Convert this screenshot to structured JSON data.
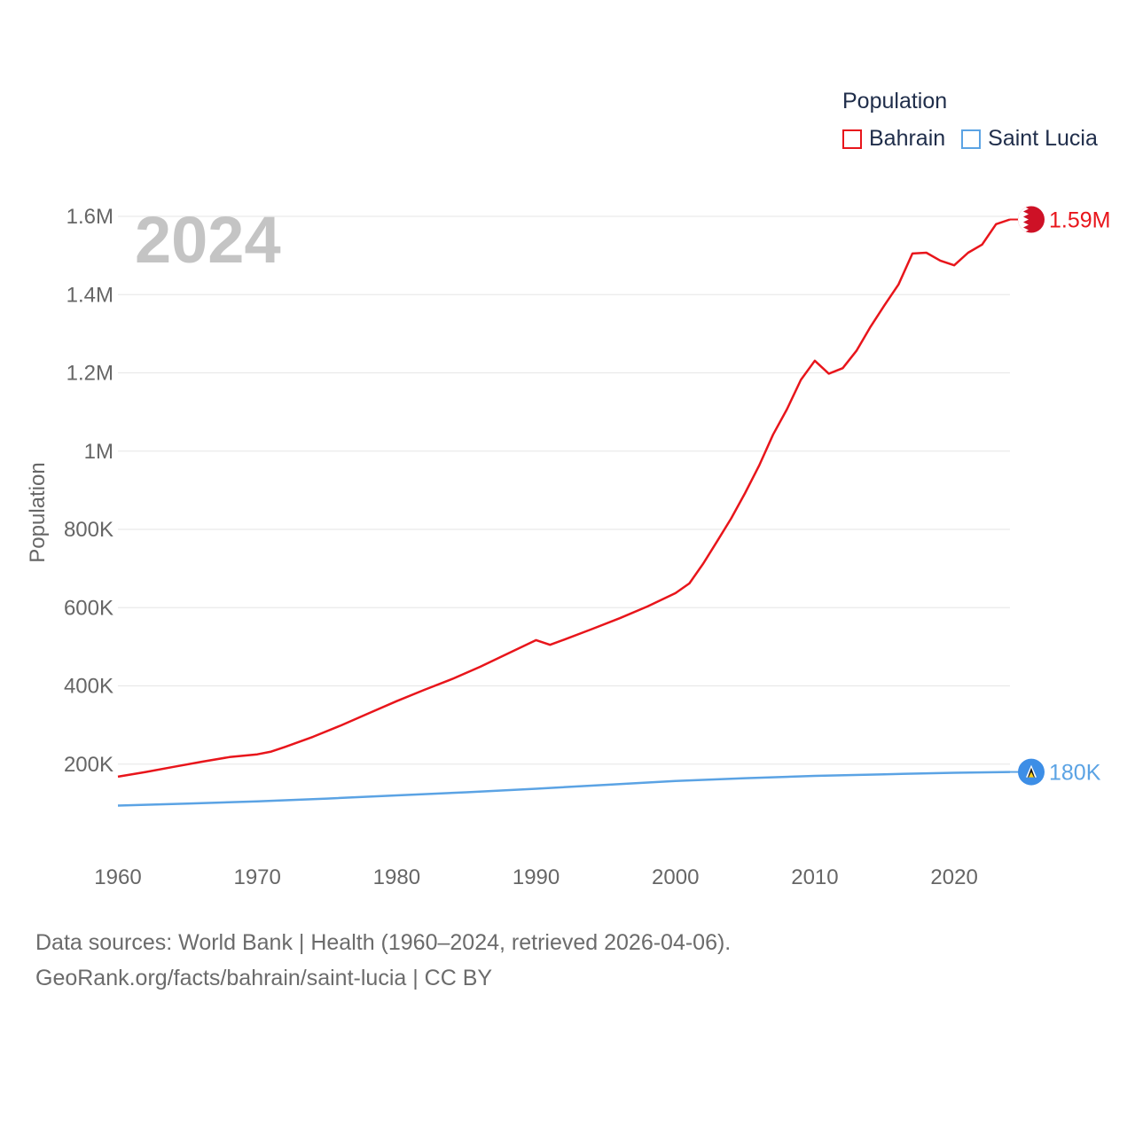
{
  "legend": {
    "title": "Population",
    "items": [
      {
        "name": "Bahrain",
        "color": "#e8151b"
      },
      {
        "name": "Saint Lucia",
        "color": "#5ba3e4"
      }
    ]
  },
  "year_label": "2024",
  "footer": {
    "line1": "Data sources: World Bank | Health (1960–2024, retrieved 2026-04-06).",
    "line2": "GeoRank.org/facts/bahrain/saint-lucia | CC BY"
  },
  "chart_data": {
    "type": "line",
    "title": "Population",
    "xlabel": "",
    "ylabel": "Population",
    "xlim": [
      1960,
      2024
    ],
    "ylim": [
      0,
      1600000
    ],
    "grid": true,
    "x_ticks": [
      {
        "value": 1960,
        "label": "1960"
      },
      {
        "value": 1970,
        "label": "1970"
      },
      {
        "value": 1980,
        "label": "1980"
      },
      {
        "value": 1990,
        "label": "1990"
      },
      {
        "value": 2000,
        "label": "2000"
      },
      {
        "value": 2010,
        "label": "2010"
      },
      {
        "value": 2020,
        "label": "2020"
      }
    ],
    "y_ticks": [
      {
        "value": 200000,
        "label": "200K"
      },
      {
        "value": 400000,
        "label": "400K"
      },
      {
        "value": 600000,
        "label": "600K"
      },
      {
        "value": 800000,
        "label": "800K"
      },
      {
        "value": 1000000,
        "label": "1M"
      },
      {
        "value": 1200000,
        "label": "1.2M"
      },
      {
        "value": 1400000,
        "label": "1.4M"
      },
      {
        "value": 1600000,
        "label": "1.6M"
      }
    ],
    "series": [
      {
        "name": "Bahrain",
        "color": "#e8151b",
        "end_label": "1.59M",
        "marker": "flag-bahrain",
        "points": [
          [
            1960,
            168000
          ],
          [
            1962,
            180000
          ],
          [
            1964,
            193000
          ],
          [
            1966,
            206000
          ],
          [
            1968,
            218000
          ],
          [
            1970,
            225000
          ],
          [
            1971,
            232000
          ],
          [
            1972,
            244000
          ],
          [
            1974,
            270000
          ],
          [
            1976,
            299000
          ],
          [
            1978,
            330000
          ],
          [
            1980,
            361000
          ],
          [
            1982,
            390000
          ],
          [
            1984,
            418000
          ],
          [
            1986,
            449000
          ],
          [
            1988,
            483000
          ],
          [
            1990,
            517000
          ],
          [
            1991,
            505000
          ],
          [
            1992,
            518000
          ],
          [
            1994,
            545000
          ],
          [
            1996,
            573000
          ],
          [
            1998,
            603000
          ],
          [
            2000,
            637000
          ],
          [
            2001,
            662000
          ],
          [
            2002,
            713000
          ],
          [
            2003,
            770000
          ],
          [
            2004,
            828000
          ],
          [
            2005,
            893000
          ],
          [
            2006,
            963000
          ],
          [
            2007,
            1042000
          ],
          [
            2008,
            1107000
          ],
          [
            2009,
            1182000
          ],
          [
            2010,
            1231000
          ],
          [
            2011,
            1198000
          ],
          [
            2012,
            1212000
          ],
          [
            2013,
            1257000
          ],
          [
            2014,
            1318000
          ],
          [
            2015,
            1373000
          ],
          [
            2016,
            1426000
          ],
          [
            2017,
            1505000
          ],
          [
            2018,
            1507000
          ],
          [
            2019,
            1487000
          ],
          [
            2020,
            1475000
          ],
          [
            2021,
            1507000
          ],
          [
            2022,
            1528000
          ],
          [
            2023,
            1580000
          ],
          [
            2024,
            1592000
          ]
        ]
      },
      {
        "name": "Saint Lucia",
        "color": "#5ba3e4",
        "end_label": "180K",
        "marker": "flag-saint-lucia",
        "points": [
          [
            1960,
            94000
          ],
          [
            1965,
            99000
          ],
          [
            1970,
            105000
          ],
          [
            1975,
            112000
          ],
          [
            1980,
            120000
          ],
          [
            1985,
            128000
          ],
          [
            1990,
            137000
          ],
          [
            1995,
            147000
          ],
          [
            2000,
            157000
          ],
          [
            2005,
            164000
          ],
          [
            2010,
            170000
          ],
          [
            2015,
            174000
          ],
          [
            2020,
            178000
          ],
          [
            2024,
            180000
          ]
        ]
      }
    ]
  }
}
